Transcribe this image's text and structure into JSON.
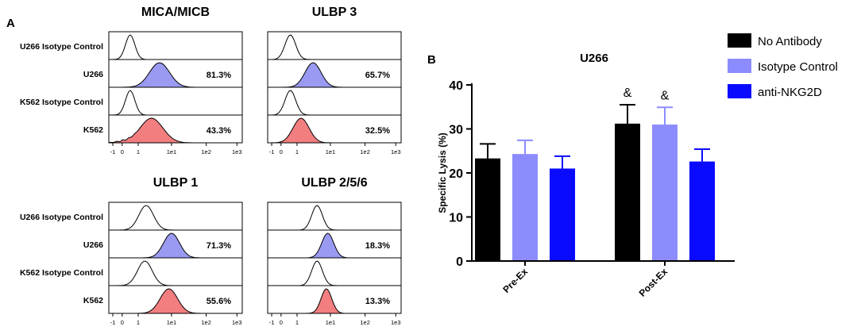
{
  "colors": {
    "u266_fill": "#9a9af2",
    "k562_fill": "#f27e80",
    "no_antibody": "#000000",
    "isotype": "#8c8cff",
    "anti_nkg2d": "#0a0aff"
  },
  "panelA": {
    "label": "A",
    "row_labels": [
      "U266 Isotype Control",
      "U266",
      "K562 Isotype Control",
      "K562"
    ],
    "x_ticks": [
      "-1",
      "0",
      "1",
      "1e1",
      "1e2",
      "1e3"
    ],
    "panels": [
      {
        "title": "MICA/MICB",
        "percents": [
          "81.3%",
          "43.3%"
        ]
      },
      {
        "title": "ULBP 3",
        "percents": [
          "65.7%",
          "32.5%"
        ]
      },
      {
        "title": "ULBP 1",
        "percents": [
          "71.3%",
          "55.6%"
        ]
      },
      {
        "title": "ULBP 2/5/6",
        "percents": [
          "18.3%",
          "13.3%"
        ]
      }
    ]
  },
  "panelB": {
    "label": "B"
  },
  "chart_data": {
    "type": "bar",
    "title": "U266",
    "xlabel": "",
    "ylabel": "Specific Lysis (%)",
    "ylim": [
      0,
      40
    ],
    "yticks": [
      "0",
      "10",
      "20",
      "30",
      "40"
    ],
    "categories": [
      "Pre-Ex",
      "Post-Ex"
    ],
    "series": [
      {
        "name": "No Antibody",
        "values": [
          23.3,
          31.2
        ],
        "errors": [
          3.3,
          4.3
        ],
        "annotations": [
          "",
          "&"
        ]
      },
      {
        "name": "Isotype Control",
        "values": [
          24.3,
          31.0
        ],
        "errors": [
          3.1,
          3.9
        ],
        "annotations": [
          "",
          "&"
        ]
      },
      {
        "name": "anti-NKG2D",
        "values": [
          21.0,
          22.6
        ],
        "errors": [
          2.8,
          2.8
        ],
        "annotations": [
          "",
          ""
        ]
      }
    ],
    "legend": "top-right"
  }
}
